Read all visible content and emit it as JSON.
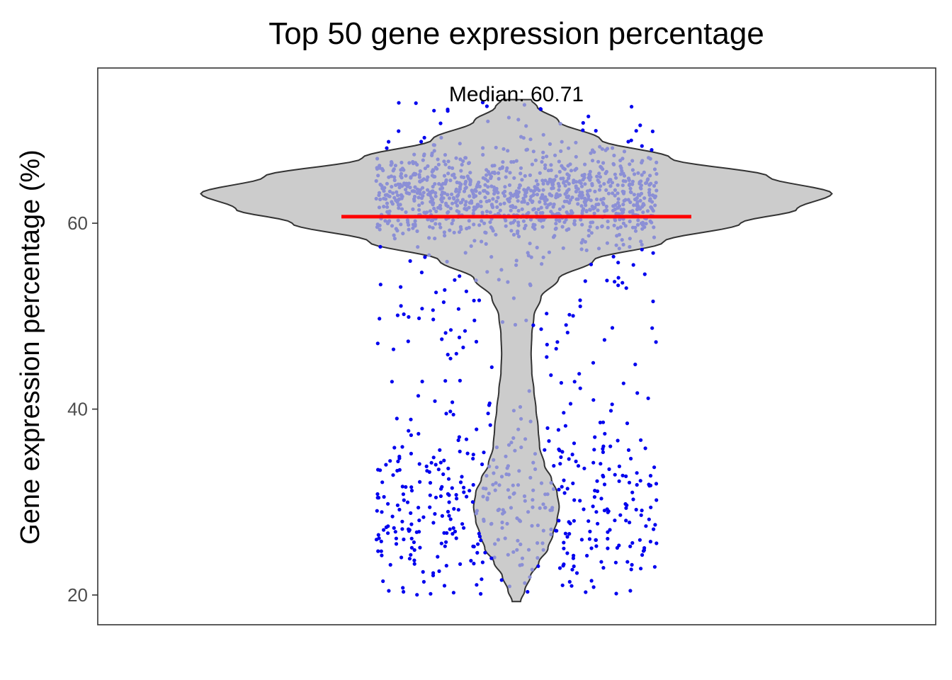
{
  "chart_data": {
    "type": "violin",
    "title": "Top 50 gene expression percentage",
    "xlabel": "",
    "ylabel": "Gene expression percentage (%)",
    "ylim": [
      16.8,
      76.7
    ],
    "yticks": [
      20,
      40,
      60
    ],
    "grid": false,
    "median": 60.71,
    "annotation": "Median: 60.71",
    "density_profile": [
      {
        "y": 19.3,
        "w": 0.06
      },
      {
        "y": 20.5,
        "w": 0.12
      },
      {
        "y": 22.0,
        "w": 0.2
      },
      {
        "y": 23.5,
        "w": 0.32
      },
      {
        "y": 25.0,
        "w": 0.45
      },
      {
        "y": 26.5,
        "w": 0.52
      },
      {
        "y": 28.0,
        "w": 0.58
      },
      {
        "y": 29.5,
        "w": 0.61
      },
      {
        "y": 31.0,
        "w": 0.58
      },
      {
        "y": 32.5,
        "w": 0.5
      },
      {
        "y": 34.0,
        "w": 0.4
      },
      {
        "y": 36.0,
        "w": 0.33
      },
      {
        "y": 38.0,
        "w": 0.31
      },
      {
        "y": 40.0,
        "w": 0.28
      },
      {
        "y": 42.0,
        "w": 0.25
      },
      {
        "y": 44.0,
        "w": 0.22
      },
      {
        "y": 46.0,
        "w": 0.21
      },
      {
        "y": 48.0,
        "w": 0.22
      },
      {
        "y": 50.0,
        "w": 0.25
      },
      {
        "y": 52.0,
        "w": 0.35
      },
      {
        "y": 54.0,
        "w": 0.6
      },
      {
        "y": 56.0,
        "w": 1.1
      },
      {
        "y": 58.0,
        "w": 2.1
      },
      {
        "y": 60.0,
        "w": 3.2
      },
      {
        "y": 61.5,
        "w": 4.0
      },
      {
        "y": 63.2,
        "w": 4.5
      },
      {
        "y": 65.0,
        "w": 3.6
      },
      {
        "y": 67.0,
        "w": 2.2
      },
      {
        "y": 69.0,
        "w": 1.2
      },
      {
        "y": 71.0,
        "w": 0.6
      },
      {
        "y": 72.5,
        "w": 0.3
      },
      {
        "y": 73.3,
        "w": 0.21
      }
    ],
    "points_count_visible": 1600,
    "point_colors": {
      "inside": "#8b8fd6",
      "outside": "#0000ee"
    },
    "colors": {
      "violin_fill": "#cccccc",
      "violin_stroke": "#333333",
      "median_line": "#ff0000",
      "panel_border": "#333333"
    }
  }
}
